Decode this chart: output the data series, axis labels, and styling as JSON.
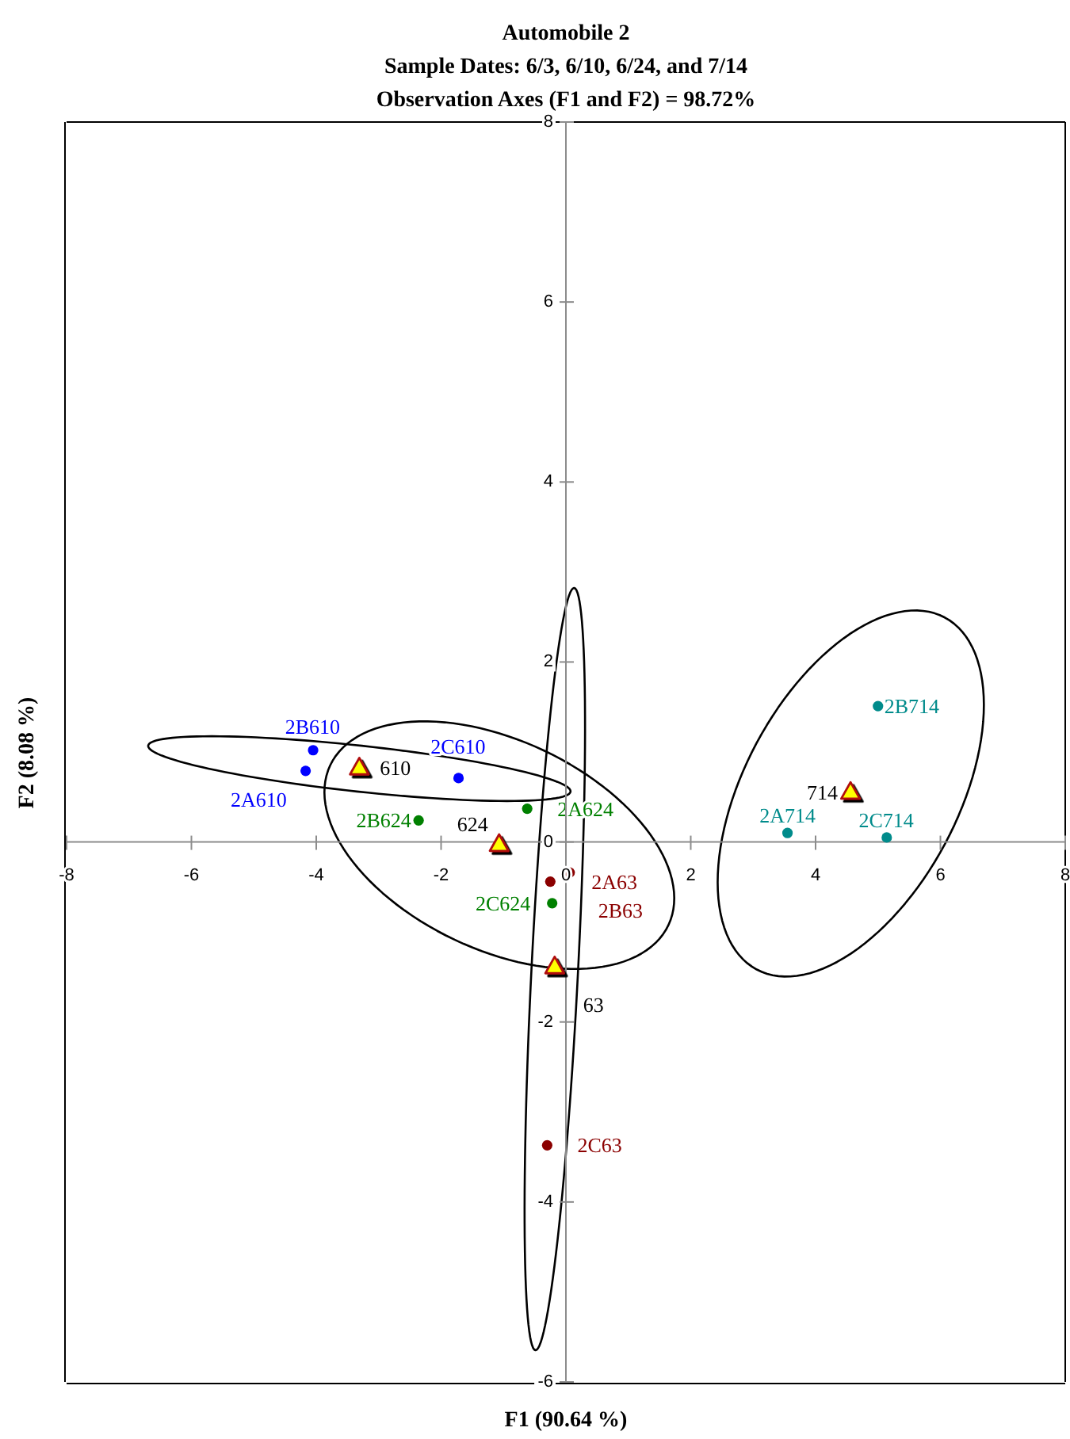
{
  "chart_data": {
    "type": "scatter",
    "title": "Automobile 2",
    "subtitle": "Sample Dates: 6/3, 6/10, 6/24, and 7/14\nObservation Axes (F1 and F2) = 98.72%",
    "xlabel": "F1 (90.64 %)",
    "ylabel": "F2 (8.08 %)",
    "xlim": [
      -8,
      8
    ],
    "xticks": [
      -8,
      -6,
      -4,
      -2,
      0,
      2,
      4,
      6,
      8
    ],
    "ylim": [
      -6,
      8
    ],
    "yticks": [
      -6,
      -4,
      -2,
      0,
      2,
      4,
      6,
      8
    ],
    "marker": "circle",
    "annotations": [
      {
        "text": "610",
        "x": -3.31,
        "y": 0.82
      },
      {
        "text": "624",
        "x": -1.07,
        "y": -0.03
      },
      {
        "text": "63",
        "x": -0.18,
        "y": -1.39
      },
      {
        "text": "714",
        "x": 4.56,
        "y": 0.55
      }
    ],
    "series": [
      {
        "type": "scatter",
        "color": "#0000ff",
        "x": [
          -4.17,
          -4.05,
          -1.72
        ],
        "values": [
          0.79,
          1.02,
          0.71
        ],
        "value_labels": [
          "2A610",
          "2B610",
          "2C610"
        ]
      },
      {
        "type": "scatter",
        "color": "#008000",
        "x": [
          -0.62,
          -2.36,
          -0.22
        ],
        "values": [
          0.37,
          0.24,
          -0.68
        ],
        "value_labels": [
          "2A624",
          "2B624",
          "2C624"
        ]
      },
      {
        "type": "scatter",
        "color": "#8b0000",
        "x": [
          -0.25,
          0.06,
          -0.3
        ],
        "values": [
          -0.44,
          -0.34,
          -3.37
        ],
        "value_labels": [
          "2A63",
          "2B63",
          "2C63"
        ]
      },
      {
        "type": "scatter",
        "color": "#008b8b",
        "x": [
          3.55,
          5.0,
          5.14
        ],
        "values": [
          0.1,
          1.51,
          0.05
        ],
        "value_labels": [
          "2A714",
          "2B714",
          "2C714"
        ]
      },
      {
        "type": "scatter",
        "color": "#ffff00",
        "marker": "triangle",
        "x": [
          -3.31,
          -1.07,
          -0.18,
          4.56
        ],
        "values": [
          0.82,
          -0.03,
          -1.39,
          0.55
        ]
      }
    ]
  }
}
